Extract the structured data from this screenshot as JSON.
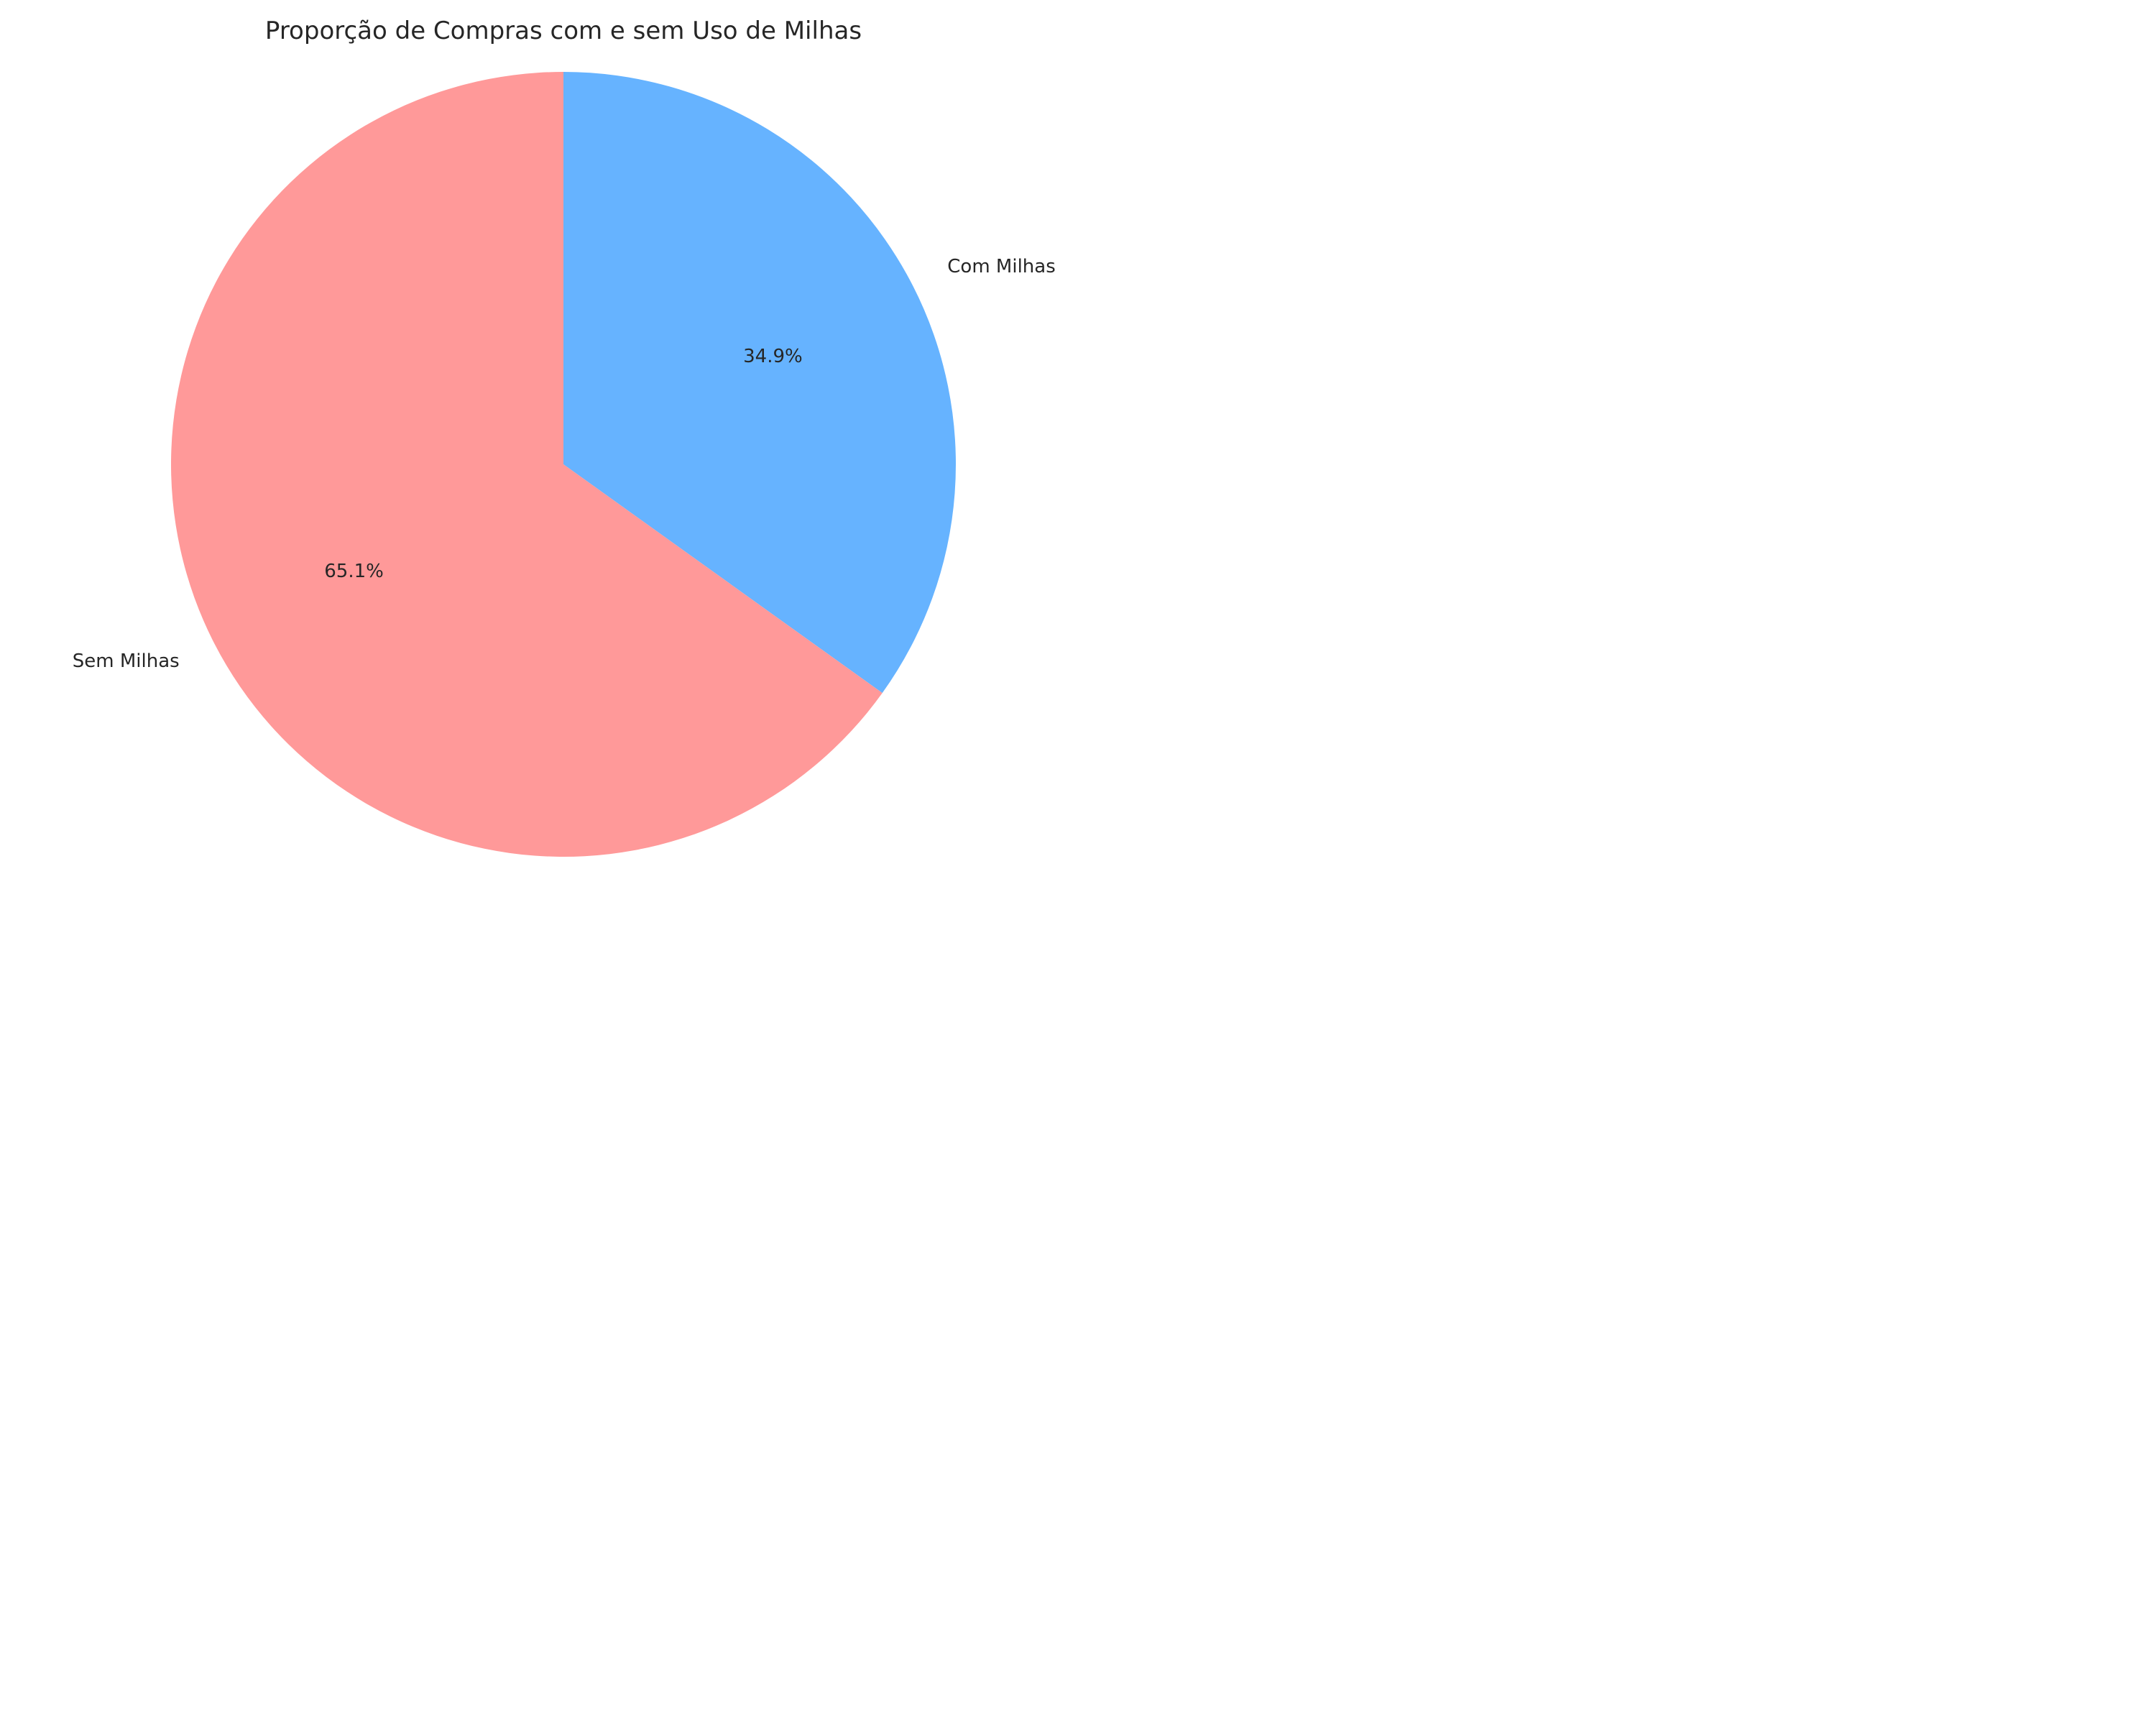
{
  "chart_data": {
    "type": "pie",
    "title": "Proporção de Compras com e sem Uso de Milhas",
    "start_angle_deg": 90,
    "direction": "clockwise",
    "slices": [
      {
        "label": "Com Milhas",
        "value": 34.9,
        "pct_label": "34.9%",
        "color": "#66b3ff"
      },
      {
        "label": "Sem Milhas",
        "value": 65.1,
        "pct_label": "65.1%",
        "color": "#ff9999"
      }
    ]
  }
}
